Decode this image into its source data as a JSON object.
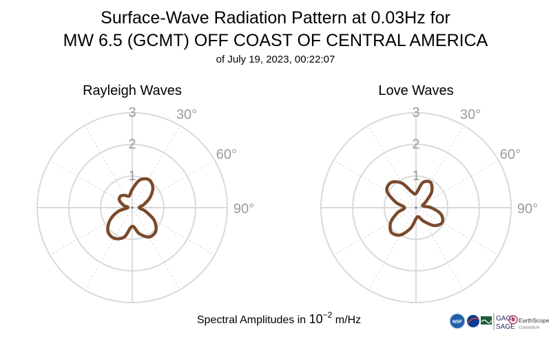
{
  "title_line1": "Surface-Wave Radiation Pattern at 0.03Hz for",
  "title_line2": "MW 6.5 (GCMT) OFF COAST OF CENTRAL AMERICA",
  "subtitle": "of July 19, 2023, 00:22:07",
  "footer": {
    "label_prefix": "Spectral Amplitudes in ",
    "label_base": "10",
    "label_exponent": "−2",
    "label_unit": " m/Hz"
  },
  "logos": {
    "nsf": "NSF",
    "gage": "GAGE",
    "sage": "SAGE",
    "earthscope": "EarthScope",
    "consortium": "Consortium"
  },
  "colors": {
    "curve": "#7a4a2c",
    "grid": "#d9d9d9",
    "tick_label": "#9a9a9a"
  },
  "chart_data": [
    {
      "type": "polar-line",
      "title": "Rayleigh Waves",
      "r_max": 3,
      "r_ticks": [
        1,
        2,
        3
      ],
      "theta_tick_labels": [
        "30°",
        "60°",
        "90°"
      ],
      "theta_zero": "north",
      "theta_direction": "clockwise",
      "grid": true,
      "theta_deg": [
        0,
        15,
        30,
        45,
        60,
        75,
        90,
        105,
        120,
        135,
        150,
        165,
        180,
        195,
        210,
        225,
        240,
        255,
        270,
        285,
        300,
        315,
        330,
        345
      ],
      "r": [
        0.58,
        0.9,
        1.03,
        0.92,
        0.65,
        0.38,
        0.22,
        0.43,
        0.8,
        1.05,
        1.07,
        0.85,
        0.59,
        0.96,
        1.12,
        1.08,
        0.82,
        0.46,
        0.14,
        0.28,
        0.47,
        0.52,
        0.45,
        0.38
      ]
    },
    {
      "type": "polar-line",
      "title": "Love Waves",
      "r_max": 3,
      "r_ticks": [
        1,
        2,
        3
      ],
      "theta_tick_labels": [
        "30°",
        "60°",
        "90°"
      ],
      "theta_zero": "north",
      "theta_direction": "clockwise",
      "grid": true,
      "theta_deg": [
        0,
        15,
        30,
        45,
        60,
        75,
        90,
        105,
        120,
        135,
        150,
        165,
        180,
        195,
        210,
        225,
        240,
        255,
        270,
        285,
        300,
        315,
        330,
        345
      ],
      "r": [
        0.45,
        0.82,
        0.92,
        0.7,
        0.35,
        0.22,
        0.48,
        0.82,
        0.95,
        0.8,
        0.5,
        0.3,
        0.35,
        0.68,
        1.0,
        1.1,
        0.92,
        0.6,
        0.36,
        0.66,
        1.06,
        1.12,
        0.9,
        0.52
      ]
    }
  ]
}
